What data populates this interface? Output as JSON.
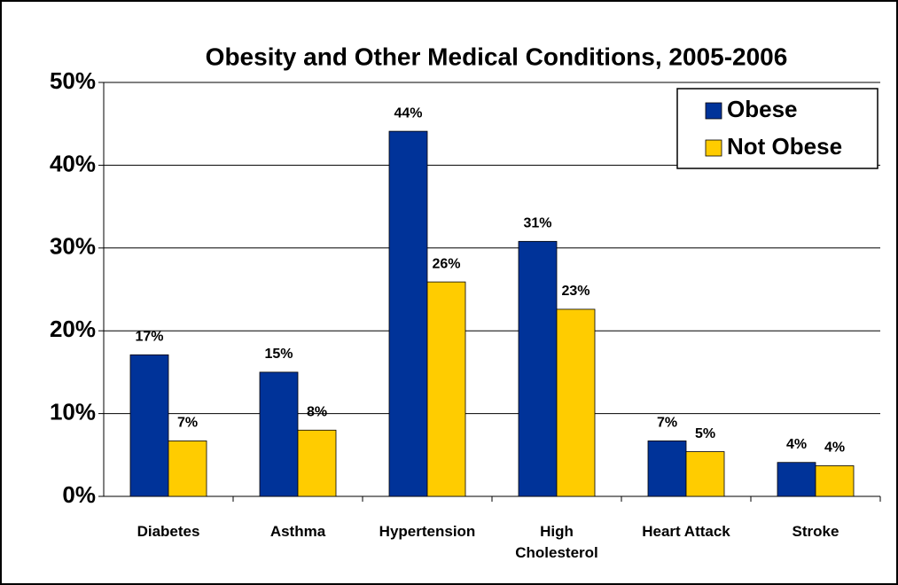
{
  "chart_data": {
    "type": "bar",
    "title": "Obesity and Other Medical Conditions, 2005-2006",
    "categories": [
      "Diabetes",
      "Asthma",
      "Hypertension",
      "High Cholesterol",
      "Heart Attack",
      "Stroke"
    ],
    "series": [
      {
        "name": "Obese",
        "color": "#003399",
        "values": [
          17.1,
          15.0,
          44.1,
          30.8,
          6.7,
          4.1
        ],
        "value_labels": [
          "17%",
          "15%",
          "44%",
          "31%",
          "7%",
          "4%"
        ]
      },
      {
        "name": "Not Obese",
        "color": "#FFCC00",
        "values": [
          6.7,
          8.0,
          25.9,
          22.6,
          5.4,
          3.7
        ],
        "value_labels": [
          "7%",
          "8%",
          "26%",
          "23%",
          "5%",
          "4%"
        ]
      }
    ],
    "ylim": [
      0,
      50
    ],
    "yticks": [
      {
        "value": 0,
        "label": "0%"
      },
      {
        "value": 10,
        "label": "10%"
      },
      {
        "value": 20,
        "label": "20%"
      },
      {
        "value": 30,
        "label": "30%"
      },
      {
        "value": 40,
        "label": "40%"
      },
      {
        "value": 50,
        "label": "50%"
      }
    ],
    "grid": true,
    "legend": "upper right"
  }
}
